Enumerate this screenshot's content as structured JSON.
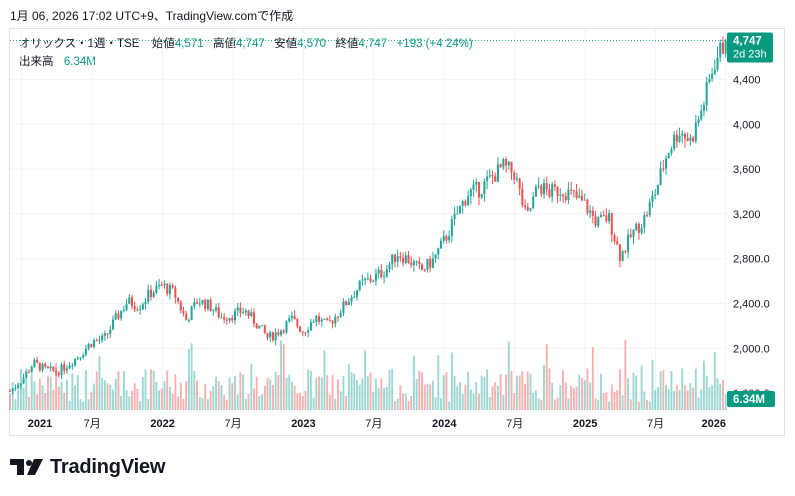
{
  "caption": "1月 06, 2026 17:02 UTC+9、TradingView.comで作成",
  "legend": {
    "symbol": "オリックス・1週・TSE",
    "open_label": "始値",
    "open": "4,571",
    "high_label": "高値",
    "high": "4,747",
    "low_label": "安値",
    "low": "4,570",
    "close_label": "終値",
    "close": "4,747",
    "change": "+193 (+4.24%)",
    "volume_label": "出来高",
    "volume": "6.34M"
  },
  "price_tag": {
    "price": "4,747",
    "countdown": "2d 23h"
  },
  "volume_tag": "6.34M",
  "brand": {
    "name": "TradingView"
  },
  "colors": {
    "up": "#26a69a",
    "down": "#ef5350",
    "up_text": "#089981",
    "grid": "#f0f3fa"
  },
  "chart_data": {
    "type": "candlestick",
    "interval": "weekly",
    "symbol": "オリックス・TSE",
    "y_ticks": [
      "4,400",
      "4,000",
      "3,600",
      "3,200",
      "2,800.0",
      "2,400.0",
      "2,000.0",
      "1,600.0"
    ],
    "y_tick_values": [
      4400,
      4000,
      3600,
      3200,
      2800,
      2400,
      2000,
      1600
    ],
    "ylim": [
      1450,
      4850
    ],
    "x_ticks": [
      "2021",
      "7月",
      "2022",
      "7月",
      "2023",
      "7月",
      "2024",
      "7月",
      "2025",
      "7月",
      "2026"
    ],
    "x_tick_dates": [
      "2021-01",
      "2021-07",
      "2022-01",
      "2022-07",
      "2023-01",
      "2023-07",
      "2024-01",
      "2024-07",
      "2025-01",
      "2025-07",
      "2026-01"
    ],
    "x_range": [
      "2020-12",
      "2026-01"
    ],
    "price_path": [
      [
        "2020-12",
        1620
      ],
      [
        "2021-01",
        1720
      ],
      [
        "2021-02",
        1870
      ],
      [
        "2021-03",
        1810
      ],
      [
        "2021-04",
        1790
      ],
      [
        "2021-05",
        1860
      ],
      [
        "2021-06",
        1950
      ],
      [
        "2021-07",
        2060
      ],
      [
        "2021-08",
        2080
      ],
      [
        "2021-09",
        2260
      ],
      [
        "2021-10",
        2420
      ],
      [
        "2021-11",
        2380
      ],
      [
        "2021-12",
        2500
      ],
      [
        "2022-01",
        2560
      ],
      [
        "2022-02",
        2490
      ],
      [
        "2022-03",
        2250
      ],
      [
        "2022-04",
        2430
      ],
      [
        "2022-05",
        2380
      ],
      [
        "2022-06",
        2280
      ],
      [
        "2022-07",
        2300
      ],
      [
        "2022-08",
        2340
      ],
      [
        "2022-09",
        2220
      ],
      [
        "2022-10",
        2090
      ],
      [
        "2022-11",
        2160
      ],
      [
        "2022-12",
        2260
      ],
      [
        "2023-01",
        2150
      ],
      [
        "2023-02",
        2280
      ],
      [
        "2023-03",
        2200
      ],
      [
        "2023-04",
        2320
      ],
      [
        "2023-05",
        2460
      ],
      [
        "2023-06",
        2580
      ],
      [
        "2023-07",
        2630
      ],
      [
        "2023-08",
        2700
      ],
      [
        "2023-09",
        2850
      ],
      [
        "2023-10",
        2790
      ],
      [
        "2023-11",
        2690
      ],
      [
        "2023-12",
        2780
      ],
      [
        "2024-01",
        2960
      ],
      [
        "2024-02",
        3180
      ],
      [
        "2024-03",
        3380
      ],
      [
        "2024-04",
        3420
      ],
      [
        "2024-05",
        3520
      ],
      [
        "2024-06",
        3620
      ],
      [
        "2024-07",
        3560
      ],
      [
        "2024-08",
        3150
      ],
      [
        "2024-09",
        3450
      ],
      [
        "2024-10",
        3390
      ],
      [
        "2024-11",
        3420
      ],
      [
        "2024-12",
        3360
      ],
      [
        "2025-01",
        3280
      ],
      [
        "2025-02",
        3120
      ],
      [
        "2025-03",
        3170
      ],
      [
        "2025-04",
        2820
      ],
      [
        "2025-05",
        3020
      ],
      [
        "2025-06",
        3150
      ],
      [
        "2025-07",
        3400
      ],
      [
        "2025-08",
        3750
      ],
      [
        "2025-09",
        3950
      ],
      [
        "2025-10",
        3850
      ],
      [
        "2025-11",
        4150
      ],
      [
        "2025-12",
        4550
      ],
      [
        "2026-01",
        4747
      ]
    ],
    "volume_axis_label": "6.34M"
  }
}
